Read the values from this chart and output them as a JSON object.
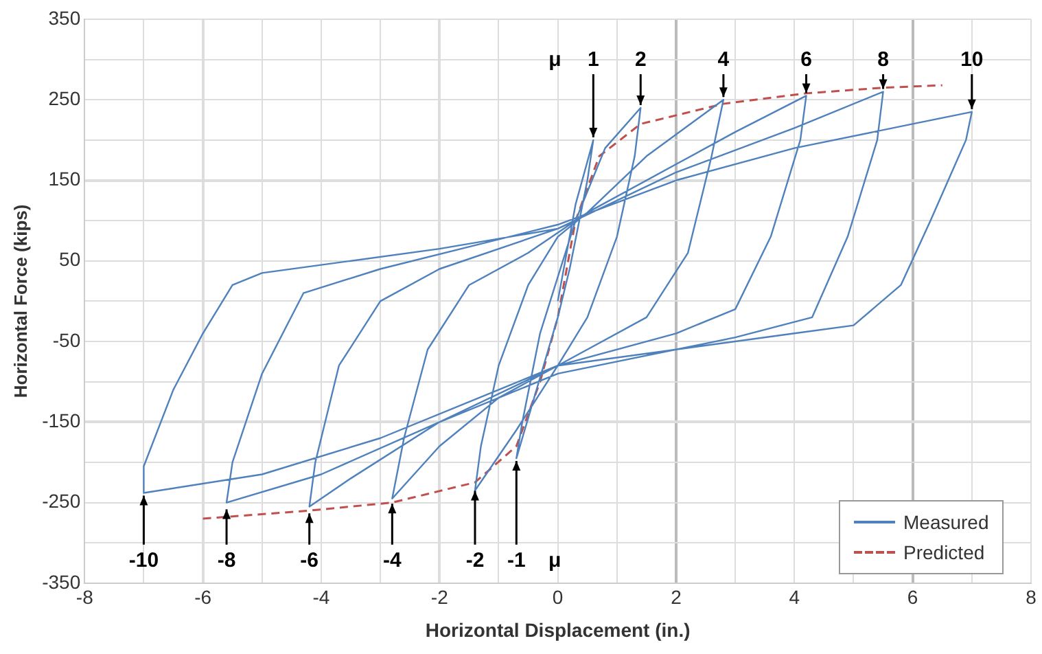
{
  "chart_data": {
    "type": "line",
    "xlabel": "Horizontal Displacement (in.)",
    "ylabel": "Horizontal Force (kips)",
    "xlim": [
      -8,
      8
    ],
    "xticks": [
      -8,
      {
        "value": -7,
        "label": null
      },
      -6,
      {
        "value": -5,
        "label": null
      },
      -4,
      {
        "value": -3,
        "label": null
      },
      -2,
      {
        "value": -1,
        "label": null
      },
      0,
      {
        "value": 1,
        "label": null
      },
      2,
      {
        "value": 3,
        "label": null
      },
      4,
      {
        "value": 5,
        "label": null
      },
      6,
      {
        "value": 7,
        "label": null
      },
      8
    ],
    "ylim": [
      -350,
      350
    ],
    "yticks": [
      -350,
      {
        "value": -300,
        "label": null
      },
      -250,
      {
        "value": -200,
        "label": null
      },
      -150,
      {
        "value": -100,
        "label": null
      },
      -50,
      {
        "value": 0,
        "label": null
      },
      50,
      {
        "value": 100,
        "label": null
      },
      150,
      {
        "value": 200,
        "label": null
      },
      250,
      {
        "value": 300,
        "label": null
      },
      350
    ],
    "grid": true,
    "legend": "bottom right",
    "series": [
      {
        "name": "Measured",
        "color": "#4f81bd",
        "line_style": "solid",
        "x": [
          0,
          0.3,
          0.6,
          0.5,
          0.2,
          0,
          -0.4,
          -0.7,
          -0.6,
          -0.3,
          0,
          0.3,
          0.8,
          1.4,
          1.3,
          1.0,
          0.5,
          0,
          -0.7,
          -1.4,
          -1.3,
          -1.0,
          -0.5,
          0,
          0.5,
          1.5,
          2.8,
          2.6,
          2.2,
          1.5,
          0.5,
          -1,
          -2,
          -2.8,
          -2.6,
          -2.2,
          -1.5,
          -0.5,
          0.5,
          2,
          3,
          4.2,
          4.1,
          3.6,
          3,
          2,
          0,
          -2,
          -3.5,
          -4.2,
          -4.1,
          -3.7,
          -3,
          -2,
          0,
          2,
          4,
          5.5,
          5.4,
          4.9,
          4.3,
          3,
          0,
          -2,
          -4,
          -5.6,
          -5.5,
          -5,
          -4.3,
          -3,
          0,
          2,
          4,
          6,
          7,
          6.9,
          6.3,
          5.8,
          5,
          4,
          2,
          0,
          -1,
          -3,
          -5,
          -7,
          -7,
          -6.5,
          -6,
          -5.5,
          -5,
          -4,
          -2,
          0,
          0.3
        ],
        "values": [
          0,
          120,
          200,
          150,
          40,
          -20,
          -120,
          -195,
          -150,
          -40,
          30,
          100,
          190,
          240,
          180,
          80,
          -20,
          -80,
          -160,
          -235,
          -180,
          -80,
          20,
          80,
          110,
          180,
          250,
          180,
          60,
          -20,
          -60,
          -120,
          -180,
          -245,
          -170,
          -60,
          20,
          60,
          110,
          170,
          210,
          255,
          200,
          80,
          -10,
          -40,
          -80,
          -150,
          -220,
          -255,
          -200,
          -80,
          0,
          40,
          90,
          160,
          215,
          260,
          200,
          80,
          -20,
          -45,
          -90,
          -150,
          -215,
          -250,
          -200,
          -90,
          10,
          40,
          95,
          150,
          190,
          220,
          235,
          200,
          100,
          20,
          -30,
          -40,
          -60,
          -80,
          -110,
          -170,
          -215,
          -238,
          -205,
          -110,
          -40,
          20,
          35,
          45,
          65,
          90,
          100
        ]
      },
      {
        "name": "Predicted",
        "color": "#c0504d",
        "line_style": "dashed",
        "x": [
          -6,
          -4.2,
          -2.8,
          -1.4,
          -0.7,
          -0.3,
          0,
          0.3,
          0.7,
          1.4,
          2.8,
          4.2,
          5.5,
          6.5
        ],
        "values": [
          -270,
          -260,
          -250,
          -225,
          -180,
          -100,
          -20,
          100,
          180,
          220,
          245,
          258,
          265,
          268
        ]
      }
    ],
    "annotations": [
      "μ",
      {
        "text": "1",
        "x": 0.6,
        "y": 200
      },
      {
        "text": "2",
        "x": 1.4,
        "y": 240
      },
      {
        "text": "4",
        "x": 2.8,
        "y": 250
      },
      {
        "text": "6",
        "x": 4.2,
        "y": 255
      },
      {
        "text": "8",
        "x": 5.5,
        "y": 260
      },
      {
        "text": "10",
        "x": 7,
        "y": 235
      },
      {
        "text": "-10",
        "x": -7,
        "y": -238
      },
      {
        "text": "-8",
        "x": -5.6,
        "y": -255
      },
      {
        "text": "-6",
        "x": -4.2,
        "y": -260
      },
      {
        "text": "-4",
        "x": -2.8,
        "y": -248
      },
      {
        "text": "-2",
        "x": -1.4,
        "y": -232
      },
      {
        "text": "-1",
        "x": -0.7,
        "y": -195
      },
      "μ"
    ]
  }
}
